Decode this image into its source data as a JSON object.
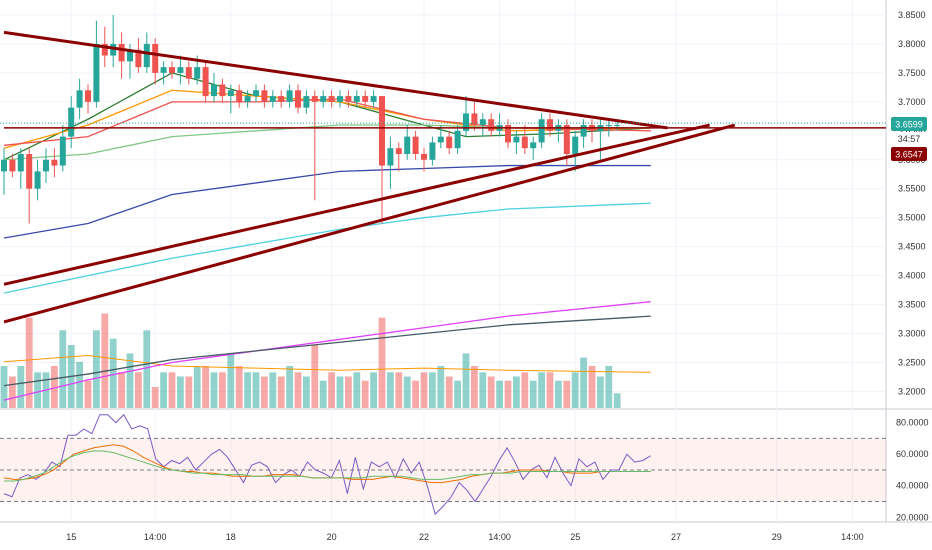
{
  "chart_data": [
    {
      "type": "candlestick",
      "price_axis": {
        "ylim": [
          3.1714,
          3.8759
        ],
        "ticks": [
          "3.8500",
          "3.8000",
          "3.7500",
          "3.7000",
          "3.6500",
          "3.6000",
          "3.5500",
          "3.5000",
          "3.4500",
          "3.4000",
          "3.3500",
          "3.3000",
          "3.2500",
          "3.2000"
        ]
      },
      "time_axis": {
        "labels": [
          {
            "text": "15",
            "bar": 0
          },
          {
            "text": "14:00",
            "bar": 1
          },
          {
            "text": "18",
            "bar": 2
          },
          {
            "text": "20",
            "bar": 3
          },
          {
            "text": "22",
            "bar": 4
          },
          {
            "text": "14:00",
            "bar": 5
          },
          {
            "text": "25",
            "bar": 6
          },
          {
            "text": "27",
            "bar": 7
          },
          {
            "text": "29",
            "bar": 8
          },
          {
            "text": "14:00",
            "bar": 9
          }
        ],
        "label_bar_index": [
          8,
          18,
          27,
          39,
          50,
          59,
          68,
          80,
          92,
          101
        ]
      },
      "price_tags": {
        "last_price": "3.6599",
        "countdown": "34:57",
        "level": "3.6547"
      },
      "candles_ohlc": [
        [
          3.58,
          3.62,
          3.54,
          3.6
        ],
        [
          3.6,
          3.61,
          3.57,
          3.58
        ],
        [
          3.58,
          3.62,
          3.55,
          3.61
        ],
        [
          3.61,
          3.62,
          3.49,
          3.55
        ],
        [
          3.55,
          3.6,
          3.53,
          3.58
        ],
        [
          3.58,
          3.62,
          3.56,
          3.6
        ],
        [
          3.6,
          3.62,
          3.57,
          3.59
        ],
        [
          3.59,
          3.66,
          3.58,
          3.64
        ],
        [
          3.64,
          3.71,
          3.62,
          3.69
        ],
        [
          3.69,
          3.74,
          3.67,
          3.72
        ],
        [
          3.72,
          3.73,
          3.68,
          3.7
        ],
        [
          3.7,
          3.84,
          3.69,
          3.8
        ],
        [
          3.8,
          3.83,
          3.76,
          3.78
        ],
        [
          3.78,
          3.85,
          3.76,
          3.8
        ],
        [
          3.8,
          3.82,
          3.74,
          3.77
        ],
        [
          3.77,
          3.8,
          3.74,
          3.79
        ],
        [
          3.79,
          3.81,
          3.75,
          3.76
        ],
        [
          3.76,
          3.82,
          3.75,
          3.8
        ],
        [
          3.8,
          3.81,
          3.73,
          3.75
        ],
        [
          3.75,
          3.77,
          3.73,
          3.76
        ],
        [
          3.76,
          3.77,
          3.74,
          3.75
        ],
        [
          3.75,
          3.78,
          3.73,
          3.76
        ],
        [
          3.76,
          3.77,
          3.73,
          3.74
        ],
        [
          3.74,
          3.78,
          3.73,
          3.76
        ],
        [
          3.76,
          3.77,
          3.7,
          3.71
        ],
        [
          3.71,
          3.75,
          3.7,
          3.73
        ],
        [
          3.73,
          3.74,
          3.7,
          3.71
        ],
        [
          3.71,
          3.73,
          3.68,
          3.72
        ],
        [
          3.72,
          3.73,
          3.69,
          3.7
        ],
        [
          3.7,
          3.72,
          3.69,
          3.71
        ],
        [
          3.71,
          3.73,
          3.7,
          3.72
        ],
        [
          3.72,
          3.73,
          3.69,
          3.7
        ],
        [
          3.7,
          3.72,
          3.69,
          3.71
        ],
        [
          3.71,
          3.72,
          3.69,
          3.7
        ],
        [
          3.7,
          3.73,
          3.69,
          3.72
        ],
        [
          3.72,
          3.73,
          3.68,
          3.69
        ],
        [
          3.69,
          3.72,
          3.68,
          3.71
        ],
        [
          3.71,
          3.72,
          3.53,
          3.7
        ],
        [
          3.7,
          3.72,
          3.69,
          3.71
        ],
        [
          3.71,
          3.72,
          3.69,
          3.7
        ],
        [
          3.7,
          3.72,
          3.69,
          3.71
        ],
        [
          3.71,
          3.72,
          3.69,
          3.7
        ],
        [
          3.7,
          3.72,
          3.69,
          3.71
        ],
        [
          3.71,
          3.72,
          3.69,
          3.7
        ],
        [
          3.7,
          3.72,
          3.69,
          3.71
        ],
        [
          3.71,
          3.71,
          3.49,
          3.59
        ],
        [
          3.59,
          3.64,
          3.55,
          3.62
        ],
        [
          3.62,
          3.63,
          3.58,
          3.61
        ],
        [
          3.61,
          3.66,
          3.6,
          3.64
        ],
        [
          3.64,
          3.65,
          3.6,
          3.61
        ],
        [
          3.61,
          3.62,
          3.58,
          3.6
        ],
        [
          3.6,
          3.64,
          3.59,
          3.63
        ],
        [
          3.63,
          3.66,
          3.62,
          3.64
        ],
        [
          3.64,
          3.65,
          3.61,
          3.62
        ],
        [
          3.62,
          3.66,
          3.61,
          3.65
        ],
        [
          3.65,
          3.71,
          3.64,
          3.68
        ],
        [
          3.68,
          3.7,
          3.65,
          3.66
        ],
        [
          3.66,
          3.68,
          3.64,
          3.67
        ],
        [
          3.67,
          3.68,
          3.64,
          3.65
        ],
        [
          3.65,
          3.68,
          3.64,
          3.66
        ],
        [
          3.66,
          3.67,
          3.62,
          3.63
        ],
        [
          3.63,
          3.65,
          3.61,
          3.64
        ],
        [
          3.64,
          3.66,
          3.61,
          3.62
        ],
        [
          3.62,
          3.64,
          3.6,
          3.63
        ],
        [
          3.63,
          3.68,
          3.62,
          3.67
        ],
        [
          3.67,
          3.68,
          3.64,
          3.65
        ],
        [
          3.65,
          3.67,
          3.63,
          3.66
        ],
        [
          3.66,
          3.67,
          3.59,
          3.61
        ],
        [
          3.61,
          3.65,
          3.58,
          3.64
        ],
        [
          3.64,
          3.67,
          3.62,
          3.66
        ],
        [
          3.66,
          3.67,
          3.63,
          3.65
        ],
        [
          3.65,
          3.67,
          3.6,
          3.66
        ],
        [
          3.66,
          3.67,
          3.64,
          3.66
        ],
        [
          3.66,
          3.67,
          3.65,
          3.66
        ]
      ],
      "volume_axis_max": 1.0,
      "volume": [
        0.2,
        0.15,
        0.2,
        0.43,
        0.17,
        0.17,
        0.2,
        0.37,
        0.3,
        0.22,
        0.13,
        0.37,
        0.45,
        0.33,
        0.17,
        0.26,
        0.17,
        0.37,
        0.1,
        0.17,
        0.17,
        0.15,
        0.15,
        0.2,
        0.2,
        0.17,
        0.17,
        0.26,
        0.2,
        0.17,
        0.17,
        0.15,
        0.17,
        0.15,
        0.2,
        0.17,
        0.15,
        0.3,
        0.13,
        0.17,
        0.15,
        0.15,
        0.17,
        0.13,
        0.17,
        0.43,
        0.17,
        0.17,
        0.15,
        0.13,
        0.17,
        0.17,
        0.2,
        0.15,
        0.13,
        0.26,
        0.2,
        0.17,
        0.15,
        0.13,
        0.13,
        0.15,
        0.17,
        0.13,
        0.17,
        0.17,
        0.13,
        0.13,
        0.17,
        0.24,
        0.2,
        0.15,
        0.2,
        0.07
      ],
      "lines": [
        {
          "style": "dark-red",
          "points": [
            [
              0,
              3.82
            ],
            [
              79,
              3.655
            ]
          ]
        },
        {
          "style": "dark-red",
          "points": [
            [
              0,
              3.385
            ],
            [
              84,
              3.66
            ]
          ]
        },
        {
          "style": "dark-red",
          "points": [
            [
              0,
              3.32
            ],
            [
              87,
              3.66
            ]
          ]
        },
        {
          "style": "dark-red",
          "points": [
            [
              0,
              3.655
            ],
            [
              102,
              3.655
            ]
          ]
        }
      ],
      "moving_averages": [
        {
          "color": "#2e7d32",
          "points": [
            [
              0,
              3.6
            ],
            [
              10,
              3.67
            ],
            [
              20,
              3.75
            ],
            [
              30,
              3.71
            ],
            [
              40,
              3.7
            ],
            [
              45,
              3.68
            ],
            [
              55,
              3.64
            ],
            [
              65,
              3.645
            ],
            [
              77,
              3.655
            ]
          ]
        },
        {
          "color": "#ff9800",
          "points": [
            [
              0,
              3.62
            ],
            [
              10,
              3.66
            ],
            [
              20,
              3.72
            ],
            [
              30,
              3.71
            ],
            [
              40,
              3.7
            ],
            [
              50,
              3.67
            ],
            [
              60,
              3.65
            ],
            [
              77,
              3.655
            ]
          ]
        },
        {
          "color": "#ef5350",
          "points": [
            [
              0,
              3.625
            ],
            [
              10,
              3.64
            ],
            [
              20,
              3.7
            ],
            [
              30,
              3.7
            ],
            [
              40,
              3.705
            ],
            [
              50,
              3.67
            ],
            [
              60,
              3.655
            ],
            [
              77,
              3.65
            ]
          ]
        },
        {
          "color": "#81c784",
          "points": [
            [
              0,
              3.6
            ],
            [
              10,
              3.61
            ],
            [
              20,
              3.64
            ],
            [
              30,
              3.65
            ],
            [
              40,
              3.66
            ],
            [
              50,
              3.66
            ],
            [
              60,
              3.655
            ],
            [
              77,
              3.655
            ]
          ]
        },
        {
          "color": "#3949ab",
          "points": [
            [
              0,
              3.465
            ],
            [
              10,
              3.49
            ],
            [
              20,
              3.54
            ],
            [
              30,
              3.56
            ],
            [
              40,
              3.58
            ],
            [
              50,
              3.585
            ],
            [
              60,
              3.59
            ],
            [
              77,
              3.59
            ]
          ]
        },
        {
          "color": "#4dd0e1",
          "points": [
            [
              0,
              3.37
            ],
            [
              10,
              3.4
            ],
            [
              20,
              3.43
            ],
            [
              30,
              3.455
            ],
            [
              40,
              3.48
            ],
            [
              50,
              3.5
            ],
            [
              60,
              3.515
            ],
            [
              77,
              3.525
            ]
          ]
        },
        {
          "color": "#e040fb",
          "points": [
            [
              0,
              3.185
            ],
            [
              10,
              3.22
            ],
            [
              20,
              3.25
            ],
            [
              30,
              3.27
            ],
            [
              40,
              3.29
            ],
            [
              50,
              3.31
            ],
            [
              60,
              3.33
            ],
            [
              77,
              3.355
            ]
          ]
        },
        {
          "color": "#455a64",
          "points": [
            [
              0,
              3.21
            ],
            [
              10,
              3.23
            ],
            [
              20,
              3.255
            ],
            [
              30,
              3.27
            ],
            [
              40,
              3.285
            ],
            [
              50,
              3.3
            ],
            [
              60,
              3.315
            ],
            [
              77,
              3.33
            ]
          ]
        }
      ],
      "volume_ma": {
        "color": "#ff9800",
        "points": [
          [
            0,
            0.22
          ],
          [
            10,
            0.25
          ],
          [
            20,
            0.2
          ],
          [
            30,
            0.19
          ],
          [
            40,
            0.18
          ],
          [
            50,
            0.19
          ],
          [
            60,
            0.18
          ],
          [
            77,
            0.17
          ]
        ]
      }
    },
    {
      "type": "line",
      "ylim": [
        17,
        88
      ],
      "ticks": [
        "80.0000",
        "60.0000",
        "40.0000",
        "20.0000"
      ],
      "band": [
        30,
        70
      ],
      "dashed_levels": [
        70,
        50,
        30
      ],
      "rsi": [
        35,
        33,
        45,
        47,
        44,
        48,
        55,
        52,
        72,
        72,
        76,
        73,
        85,
        85,
        80,
        85,
        76,
        78,
        76,
        57,
        52,
        56,
        54,
        58,
        50,
        55,
        60,
        63,
        58,
        50,
        42,
        53,
        55,
        52,
        42,
        47,
        50,
        46,
        55,
        50,
        48,
        45,
        56,
        35,
        58,
        38,
        55,
        52,
        55,
        45,
        57,
        48,
        55,
        40,
        22,
        27,
        33,
        42,
        37,
        30,
        38,
        46,
        56,
        64,
        55,
        44,
        50,
        53,
        45,
        58,
        48,
        40,
        57,
        52,
        55,
        44,
        50,
        50,
        60,
        55,
        56,
        59
      ],
      "signal": [
        45,
        44,
        44,
        45,
        47,
        50,
        55,
        60,
        62,
        64,
        65,
        66,
        65,
        62,
        58,
        55,
        52,
        50,
        49,
        49,
        48,
        48,
        47,
        46,
        46,
        46,
        46,
        47,
        47,
        47,
        46,
        45,
        45,
        45,
        45,
        44,
        44,
        44,
        45,
        46,
        45,
        44,
        43,
        42,
        42,
        43,
        44,
        46,
        47,
        48,
        48,
        49,
        50,
        50,
        50,
        49,
        49,
        48,
        48,
        48,
        49,
        49,
        49,
        49,
        49,
        49
      ],
      "signal2": [
        43,
        43,
        44,
        46,
        48,
        52,
        56,
        59,
        61,
        62,
        62,
        61,
        59,
        57,
        55,
        53,
        51,
        50,
        49,
        48,
        48,
        47,
        47,
        47,
        47,
        46,
        46,
        46,
        46,
        46,
        46,
        45,
        45,
        45,
        45,
        45,
        45,
        46,
        46,
        46,
        46,
        45,
        44,
        44,
        44,
        45,
        46,
        47,
        47,
        48,
        48,
        48,
        49,
        49,
        49,
        49,
        49,
        49,
        49,
        49,
        49,
        49,
        49,
        49,
        49,
        49
      ]
    }
  ]
}
